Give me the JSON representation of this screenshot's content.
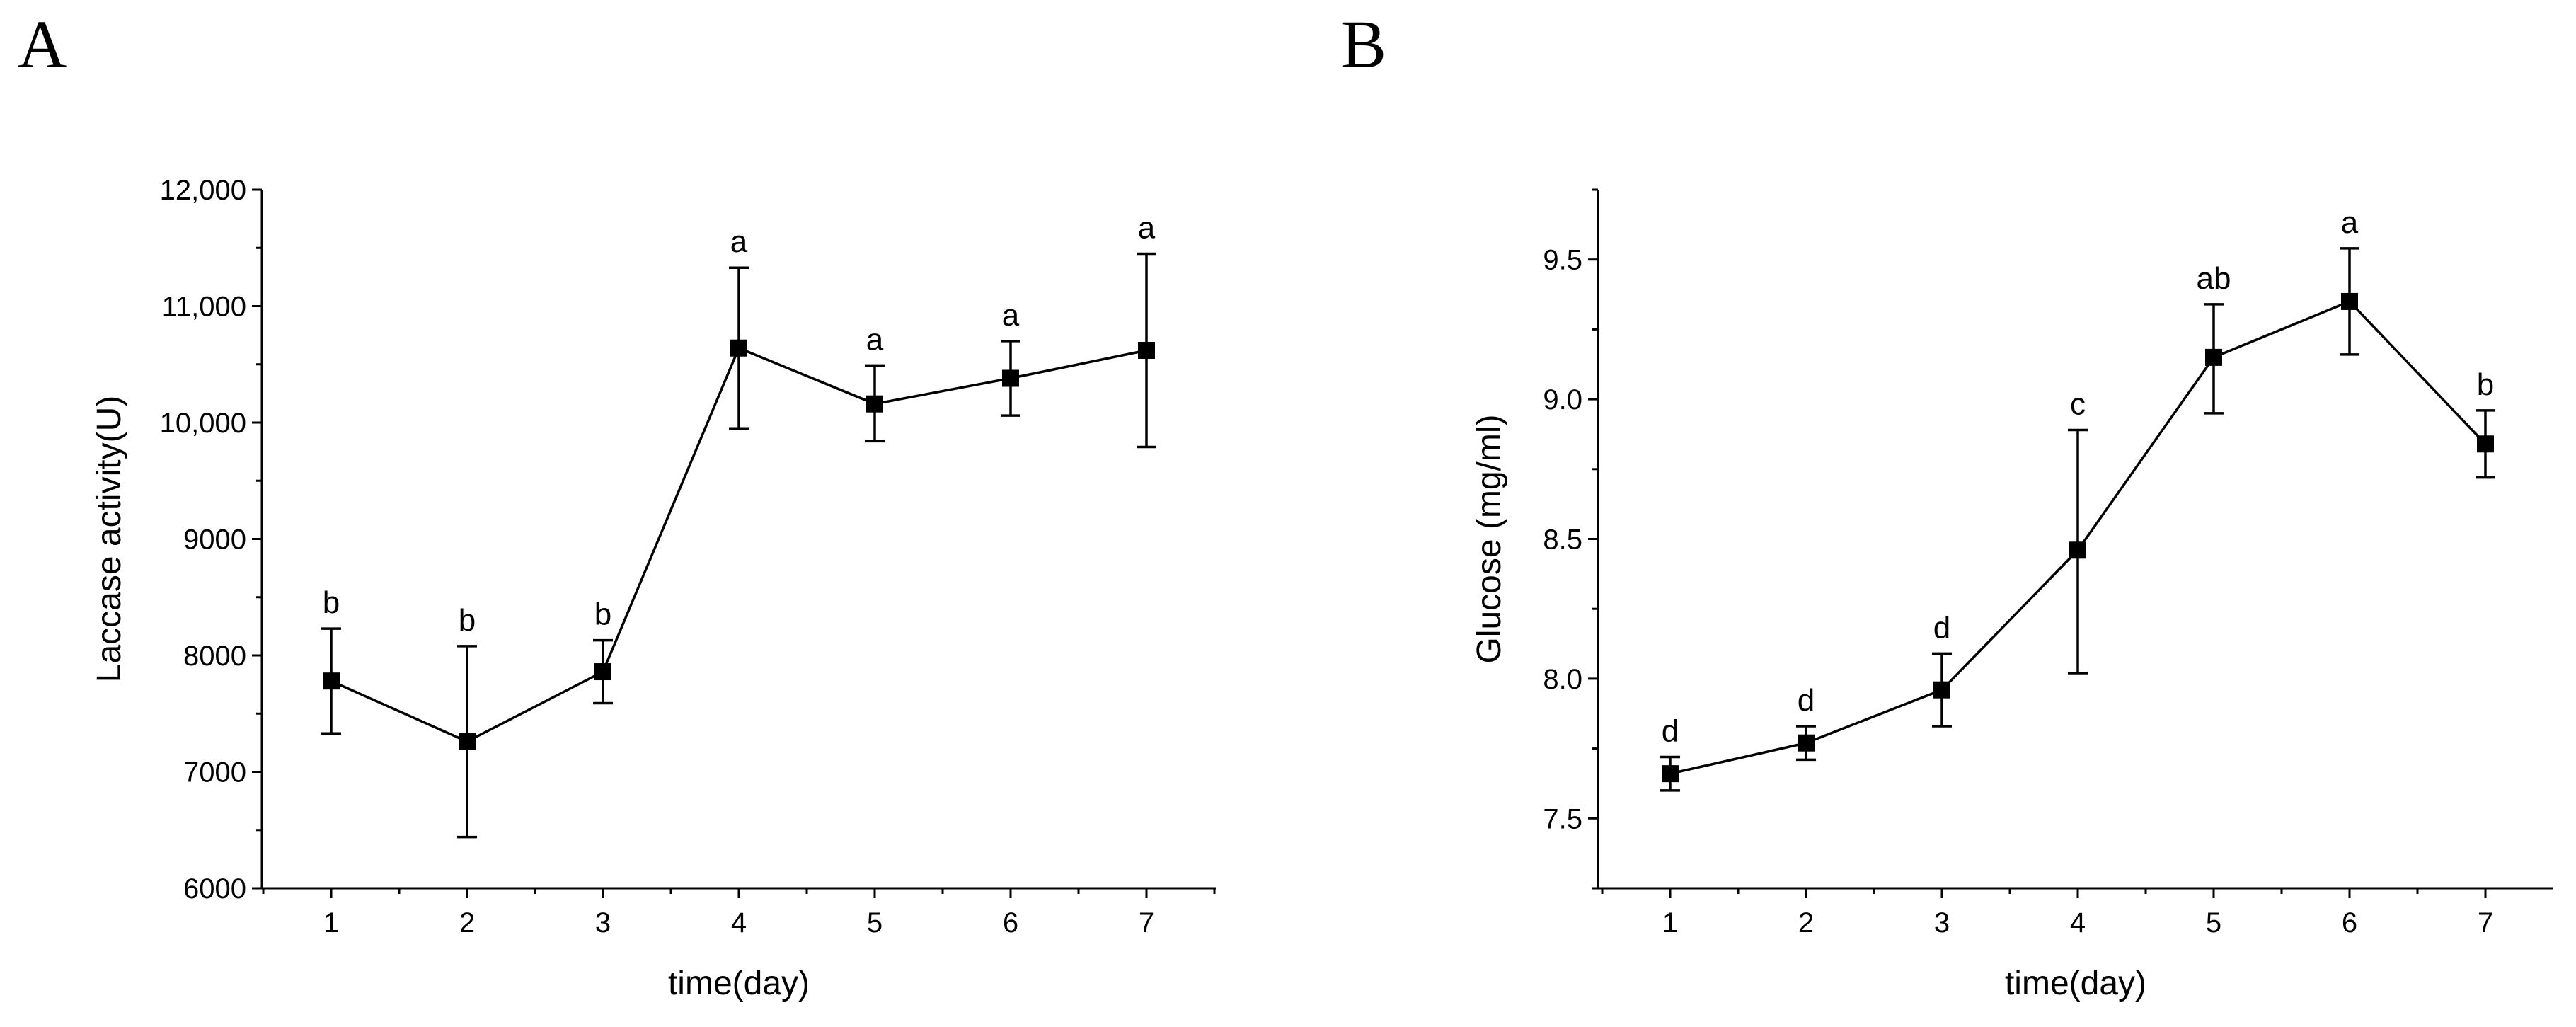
{
  "chart_data": [
    {
      "panel": "A",
      "type": "line",
      "xlabel": "time(day)",
      "ylabel": "Laccase activity(U)",
      "x": [
        1,
        2,
        3,
        4,
        5,
        6,
        7
      ],
      "xlim": [
        0.5,
        7.5
      ],
      "ylim": [
        6000,
        12000
      ],
      "yticks": [
        6000,
        7000,
        8000,
        9000,
        10000,
        11000,
        12000
      ],
      "ytick_labels": [
        "6000",
        "7000",
        "8000",
        "9000",
        "10,000",
        "11,000",
        "12,000"
      ],
      "xtick_labels": [
        "1",
        "2",
        "3",
        "4",
        "5",
        "6",
        "7"
      ],
      "series": [
        {
          "name": "Laccase activity",
          "values": [
            7780,
            7260,
            7860,
            10640,
            10160,
            10380,
            10620
          ],
          "error_upper": [
            8230,
            8080,
            8130,
            11330,
            10490,
            10700,
            11450
          ],
          "error_lower": [
            7330,
            6440,
            7590,
            9950,
            9840,
            10060,
            9790
          ],
          "significance": [
            "b",
            "b",
            "b",
            "a",
            "a",
            "a",
            "a"
          ]
        }
      ]
    },
    {
      "panel": "B",
      "type": "line",
      "xlabel": "time(day)",
      "ylabel": "Glucose (mg/ml)",
      "x": [
        1,
        2,
        3,
        4,
        5,
        6,
        7
      ],
      "xlim": [
        0.5,
        7.5
      ],
      "ylim": [
        7.25,
        9.75
      ],
      "yticks": [
        7.5,
        8.0,
        8.5,
        9.0,
        9.5
      ],
      "ytick_labels": [
        "7.5",
        "8.0",
        "8.5",
        "9.0",
        "9.5"
      ],
      "xtick_labels": [
        "1",
        "2",
        "3",
        "4",
        "5",
        "6",
        "7"
      ],
      "series": [
        {
          "name": "Glucose",
          "values": [
            7.66,
            7.77,
            7.96,
            8.46,
            9.15,
            9.35,
            8.84
          ],
          "error_upper": [
            7.72,
            7.83,
            8.09,
            8.89,
            9.34,
            9.54,
            8.96
          ],
          "error_lower": [
            7.6,
            7.71,
            7.83,
            8.02,
            8.95,
            9.16,
            8.72
          ],
          "significance": [
            "d",
            "d",
            "d",
            "c",
            "ab",
            "a",
            "b"
          ]
        }
      ]
    }
  ]
}
